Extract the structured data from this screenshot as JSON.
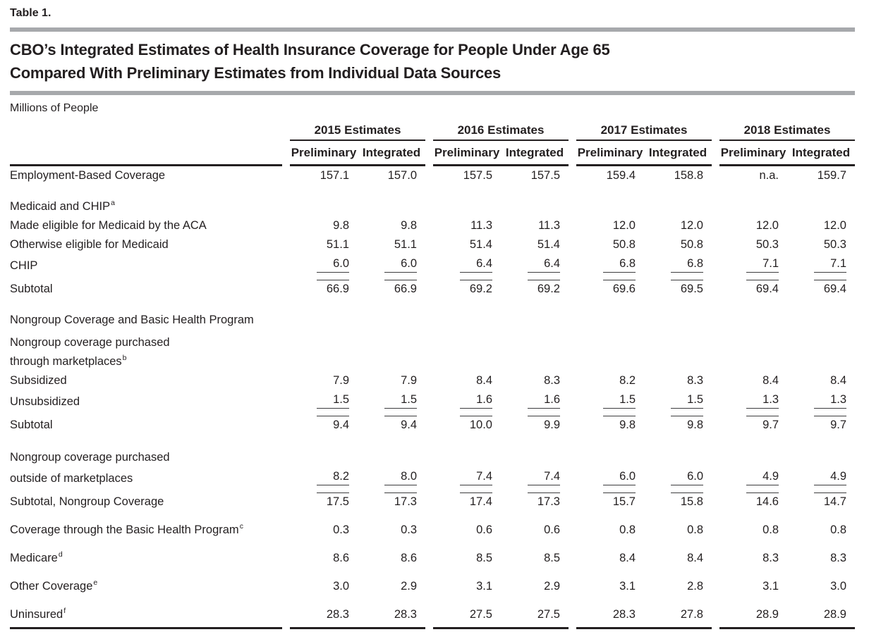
{
  "page": {
    "table_label": "Table 1.",
    "title_line1": "CBO’s Integrated Estimates of Health Insurance Coverage for People Under Age 65",
    "title_line2": "Compared With Preliminary Estimates from Individual Data Sources",
    "units": "Millions of People"
  },
  "colors": {
    "text": "#231f20",
    "title_bar": "#a7a9ac",
    "subtotal_rule": "#3c3c3e"
  },
  "table": {
    "groups": [
      {
        "label": "2015 Estimates",
        "sub": [
          "Preliminary",
          "Integrated"
        ]
      },
      {
        "label": "2016 Estimates",
        "sub": [
          "Preliminary",
          "Integrated"
        ]
      },
      {
        "label": "2017 Estimates",
        "sub": [
          "Preliminary",
          "Integrated"
        ]
      },
      {
        "label": "2018 Estimates",
        "sub": [
          "Preliminary",
          "Integrated"
        ]
      }
    ],
    "rows": [
      {
        "label": "Employment-Based Coverage",
        "sup": "",
        "indent": 0,
        "space": 0,
        "rule": "",
        "values": [
          "157.1",
          "157.0",
          "157.5",
          "157.5",
          "159.4",
          "158.8",
          "n.a.",
          "159.7"
        ]
      },
      {
        "label": "Medicaid and CHIP",
        "sup": "a",
        "indent": 0,
        "space": 3,
        "rule": "",
        "values": null
      },
      {
        "label": "Made eligible for Medicaid by the ACA",
        "sup": "",
        "indent": 1,
        "space": 0,
        "rule": "",
        "values": [
          "9.8",
          "9.8",
          "11.3",
          "11.3",
          "12.0",
          "12.0",
          "12.0",
          "12.0"
        ]
      },
      {
        "label": "Otherwise eligible for Medicaid",
        "sup": "",
        "indent": 1,
        "space": 0,
        "rule": "",
        "values": [
          "51.1",
          "51.1",
          "51.4",
          "51.4",
          "50.8",
          "50.8",
          "50.3",
          "50.3"
        ]
      },
      {
        "label": "CHIP",
        "sup": "",
        "indent": 1,
        "space": 0,
        "rule": "below",
        "values": [
          "6.0",
          "6.0",
          "6.4",
          "6.4",
          "6.8",
          "6.8",
          "7.1",
          "7.1"
        ]
      },
      {
        "label": "Subtotal",
        "sup": "",
        "indent": 3,
        "space": 0,
        "rule": "above",
        "values": [
          "66.9",
          "66.9",
          "69.2",
          "69.2",
          "69.6",
          "69.5",
          "69.4",
          "69.4"
        ]
      },
      {
        "label": "Nongroup Coverage and Basic Health Program",
        "sup": "",
        "indent": 0,
        "space": 3,
        "rule": "",
        "values": null
      },
      {
        "label": "Nongroup coverage purchased",
        "sup": "",
        "indent": 1,
        "space": 1,
        "rule": "",
        "values": null
      },
      {
        "label": "through marketplaces",
        "sup": "b",
        "indent": 2,
        "space": 0,
        "rule": "",
        "values": null
      },
      {
        "label": "Subsidized",
        "sup": "",
        "indent": 3,
        "space": 0,
        "rule": "",
        "values": [
          "7.9",
          "7.9",
          "8.4",
          "8.3",
          "8.2",
          "8.3",
          "8.4",
          "8.4"
        ]
      },
      {
        "label": "Unsubsidized",
        "sup": "",
        "indent": 3,
        "space": 0,
        "rule": "below",
        "values": [
          "1.5",
          "1.5",
          "1.6",
          "1.6",
          "1.5",
          "1.5",
          "1.3",
          "1.3"
        ]
      },
      {
        "label": "Subtotal",
        "sup": "",
        "indent": 4,
        "space": 0,
        "rule": "above",
        "values": [
          "9.4",
          "9.4",
          "10.0",
          "9.9",
          "9.8",
          "9.8",
          "9.7",
          "9.7"
        ]
      },
      {
        "label": "Nongroup coverage purchased",
        "sup": "",
        "indent": 1,
        "space": 4,
        "rule": "",
        "values": null
      },
      {
        "label": "outside of marketplaces",
        "sup": "",
        "indent": 2,
        "space": 0,
        "rule": "below",
        "values": [
          "8.2",
          "8.0",
          "7.4",
          "7.4",
          "6.0",
          "6.0",
          "4.9",
          "4.9"
        ]
      },
      {
        "label": "Subtotal, Nongroup Coverage",
        "sup": "",
        "indent": 3,
        "space": 0,
        "rule": "above",
        "values": [
          "17.5",
          "17.3",
          "17.4",
          "17.3",
          "15.7",
          "15.8",
          "14.6",
          "14.7"
        ]
      },
      {
        "label": "Coverage through the Basic Health Program",
        "sup": "c",
        "indent": 1,
        "space": 2,
        "rule": "",
        "values": [
          "0.3",
          "0.3",
          "0.6",
          "0.6",
          "0.8",
          "0.8",
          "0.8",
          "0.8"
        ]
      },
      {
        "label": "Medicare",
        "sup": "d",
        "indent": 0,
        "space": 2,
        "rule": "",
        "values": [
          "8.6",
          "8.6",
          "8.5",
          "8.5",
          "8.4",
          "8.4",
          "8.3",
          "8.3"
        ]
      },
      {
        "label": "Other Coverage",
        "sup": "e",
        "indent": 0,
        "space": 2,
        "rule": "",
        "values": [
          "3.0",
          "2.9",
          "3.1",
          "2.9",
          "3.1",
          "2.8",
          "3.1",
          "3.0"
        ]
      },
      {
        "label": "Uninsured",
        "sup": "f",
        "indent": 0,
        "space": 2,
        "rule": "",
        "values": [
          "28.3",
          "28.3",
          "27.5",
          "27.5",
          "28.3",
          "27.8",
          "28.9",
          "28.9"
        ]
      }
    ]
  }
}
